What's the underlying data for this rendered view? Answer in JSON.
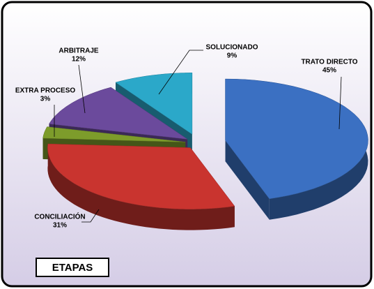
{
  "chart_data": {
    "type": "pie",
    "title": "ETAPAS",
    "categories": [
      "TRATO DIRECTO",
      "CONCILIACIÓN",
      "EXTRA PROCESO",
      "ARBITRAJE",
      "SOLUCIONADO"
    ],
    "values": [
      45,
      31,
      3,
      12,
      9
    ],
    "value_labels": [
      "45%",
      "31%",
      "3%",
      "12%",
      "9%"
    ],
    "colors": [
      "#3b70c2",
      "#c9342f",
      "#7d9c2b",
      "#6b4a9c",
      "#2ba8c9"
    ]
  }
}
